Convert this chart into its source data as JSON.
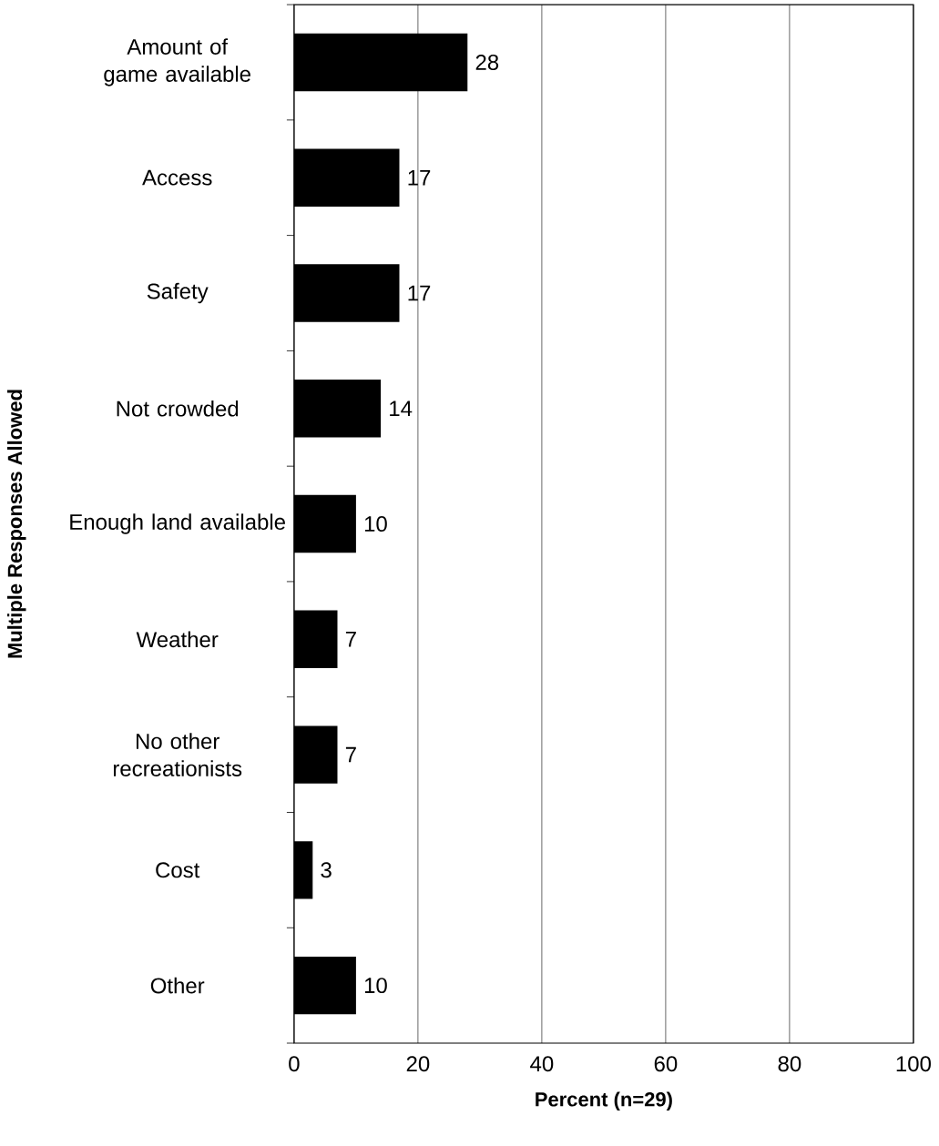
{
  "chart_data": {
    "type": "bar",
    "orientation": "horizontal",
    "xlabel": "Percent (n=29)",
    "ylabel": "Multiple Responses Allowed",
    "categories": [
      "Amount of game available",
      "Access",
      "Safety",
      "Not crowded",
      "Enough land available",
      "Weather",
      "No other recreationists",
      "Cost",
      "Other"
    ],
    "values": [
      28,
      17,
      17,
      14,
      10,
      7,
      7,
      3,
      10
    ],
    "color": "#000000",
    "data_labels": true,
    "grid": "x",
    "xlim": [
      0,
      100
    ],
    "xticks": [
      0,
      20,
      40,
      60,
      80,
      100
    ]
  }
}
